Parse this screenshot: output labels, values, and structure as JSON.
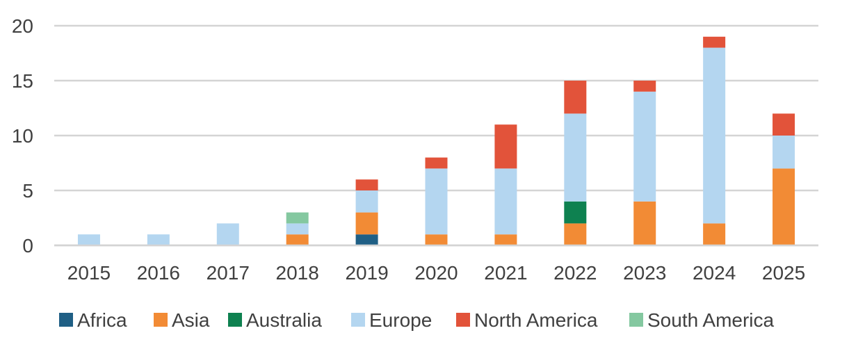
{
  "chart_data": {
    "type": "bar",
    "stacked": true,
    "categories": [
      "2015",
      "2016",
      "2017",
      "2018",
      "2019",
      "2020",
      "2021",
      "2022",
      "2023",
      "2024",
      "2025"
    ],
    "series": [
      {
        "name": "Africa",
        "color": "#1f5f85",
        "values": [
          0,
          0,
          0,
          0,
          1,
          0,
          0,
          0,
          0,
          0,
          0
        ]
      },
      {
        "name": "Asia",
        "color": "#f28b35",
        "values": [
          0,
          0,
          0,
          1,
          2,
          1,
          1,
          2,
          4,
          2,
          7
        ]
      },
      {
        "name": "Australia",
        "color": "#0e8150",
        "values": [
          0,
          0,
          0,
          0,
          0,
          0,
          0,
          2,
          0,
          0,
          0
        ]
      },
      {
        "name": "Europe",
        "color": "#b4d6f0",
        "values": [
          1,
          1,
          2,
          1,
          2,
          6,
          6,
          8,
          10,
          16,
          3
        ]
      },
      {
        "name": "North America",
        "color": "#e2533a",
        "values": [
          0,
          0,
          0,
          0,
          1,
          1,
          4,
          3,
          1,
          1,
          2
        ]
      },
      {
        "name": "South America",
        "color": "#84c8a0",
        "values": [
          0,
          0,
          0,
          1,
          0,
          0,
          0,
          0,
          0,
          0,
          0
        ]
      }
    ],
    "ylim": [
      0,
      20
    ],
    "yticks": [
      "0",
      "5",
      "10",
      "15",
      "20"
    ],
    "grid": true,
    "legend_position": "bottom",
    "title": "",
    "xlabel": "",
    "ylabel": ""
  }
}
